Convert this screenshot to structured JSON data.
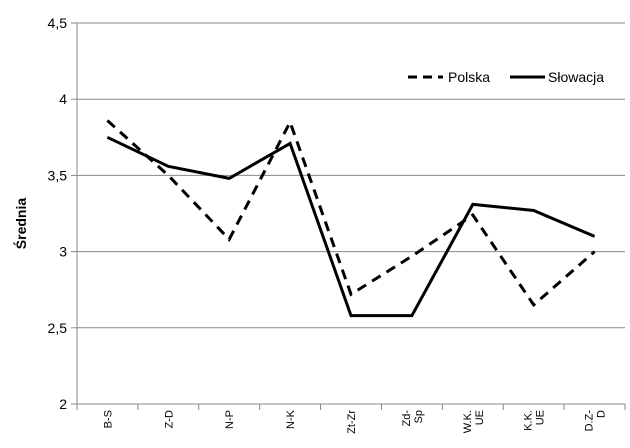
{
  "chart_data": {
    "type": "line",
    "title": "",
    "xlabel": "",
    "ylabel": "Średnia",
    "ylim": [
      2,
      4.5
    ],
    "yticks": [
      "2",
      "2,5",
      "3",
      "3,5",
      "4",
      "4,5"
    ],
    "categories": [
      "B-S",
      "Z-D",
      "N-P",
      "N-K",
      "Zt-Zr",
      "Zd-Sp",
      "W.K. UE",
      "K.K. UE",
      "D.Z-D"
    ],
    "category_lines": [
      [
        "B-S"
      ],
      [
        "Z-D"
      ],
      [
        "N-P"
      ],
      [
        "N-K"
      ],
      [
        "Zt-Zr"
      ],
      [
        "Zd-",
        "Sp"
      ],
      [
        "W.K.",
        "UE"
      ],
      [
        "K.K.",
        "UE"
      ],
      [
        "D.Z-",
        "D"
      ]
    ],
    "grid": "horizontal",
    "legend_position": "top-right",
    "series": [
      {
        "name": "Polska",
        "style": "dashed",
        "color": "#000000",
        "values": [
          3.86,
          3.5,
          3.08,
          3.85,
          2.72,
          2.97,
          3.24,
          2.65,
          3.0
        ]
      },
      {
        "name": "Słowacja",
        "style": "solid",
        "color": "#000000",
        "values": [
          3.75,
          3.56,
          3.48,
          3.71,
          2.58,
          2.58,
          3.31,
          3.27,
          3.1
        ]
      }
    ]
  }
}
